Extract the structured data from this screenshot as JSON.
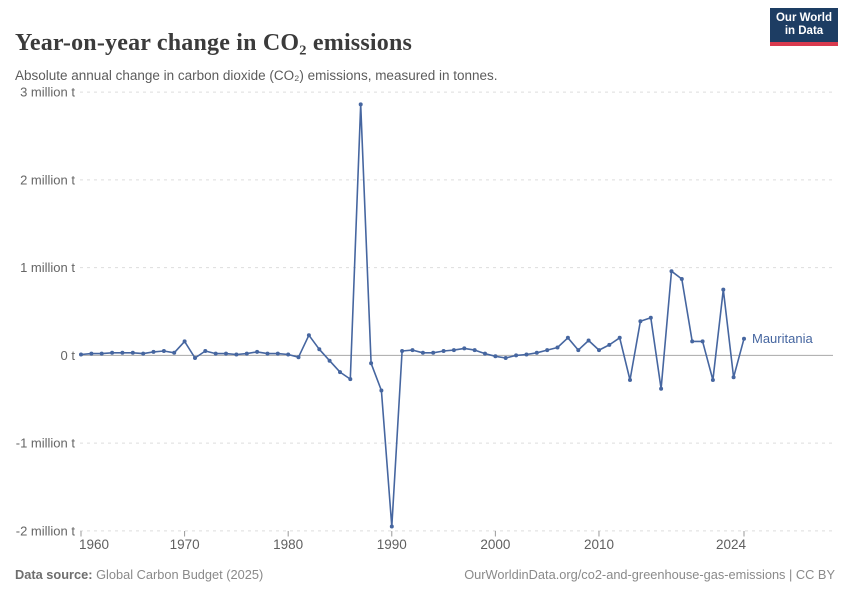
{
  "header": {
    "title": "Year-on-year change in CO₂ emissions",
    "subtitle": "Absolute annual change in carbon dioxide (CO₂) emissions, measured in tonnes.",
    "logo": {
      "line1": "Our World",
      "line2": "in Data",
      "bg_color": "#1d3d63",
      "accent_color": "#d93a4e"
    }
  },
  "chart_data": {
    "type": "line",
    "title": "Year-on-year change in CO₂ emissions",
    "unit": "tonnes",
    "xlabel": "",
    "ylabel": "",
    "grid": true,
    "legend_position": "end-of-line-label",
    "xlim": [
      1960,
      2024
    ],
    "ylim": [
      -2000000,
      3000000
    ],
    "x_ticks": [
      1960,
      1970,
      1980,
      1990,
      2000,
      2010,
      2024
    ],
    "y_ticks": [
      {
        "value": 3000000,
        "label": "3 million t"
      },
      {
        "value": 2000000,
        "label": "2 million t"
      },
      {
        "value": 1000000,
        "label": "1 million t"
      },
      {
        "value": 0,
        "label": "0 t"
      },
      {
        "value": -1000000,
        "label": "-1 million t"
      },
      {
        "value": -2000000,
        "label": "-2 million t"
      }
    ],
    "series": [
      {
        "name": "Mauritania",
        "color": "#4666a0",
        "x": [
          1960,
          1961,
          1962,
          1963,
          1964,
          1965,
          1966,
          1967,
          1968,
          1969,
          1970,
          1971,
          1972,
          1973,
          1974,
          1975,
          1976,
          1977,
          1978,
          1979,
          1980,
          1981,
          1982,
          1983,
          1984,
          1985,
          1986,
          1987,
          1988,
          1989,
          1990,
          1991,
          1992,
          1993,
          1994,
          1995,
          1996,
          1997,
          1998,
          1999,
          2000,
          2001,
          2002,
          2003,
          2004,
          2005,
          2006,
          2007,
          2008,
          2009,
          2010,
          2011,
          2012,
          2013,
          2014,
          2015,
          2016,
          2017,
          2018,
          2019,
          2020,
          2021,
          2022,
          2023,
          2024
        ],
        "values": [
          10000,
          20000,
          20000,
          30000,
          30000,
          30000,
          20000,
          40000,
          50000,
          30000,
          160000,
          -30000,
          50000,
          20000,
          20000,
          10000,
          20000,
          40000,
          20000,
          20000,
          10000,
          -20000,
          230000,
          70000,
          -60000,
          -190000,
          -270000,
          2860000,
          -90000,
          -400000,
          -1950000,
          50000,
          60000,
          30000,
          30000,
          50000,
          60000,
          80000,
          60000,
          20000,
          -10000,
          -30000,
          0,
          10000,
          30000,
          60000,
          90000,
          200000,
          60000,
          170000,
          60000,
          120000,
          200000,
          -280000,
          390000,
          430000,
          -380000,
          960000,
          870000,
          160000,
          160000,
          -280000,
          750000,
          -250000,
          190000
        ]
      }
    ],
    "colors": {
      "gridline": "#dddddd",
      "zero_line": "#a8a8a8",
      "tick_mark": "#999999",
      "axis_label": "#666666"
    }
  },
  "footer": {
    "source_label": "Data source:",
    "source_value": " Global Carbon Budget (2025)",
    "attribution": "OurWorldinData.org/co2-and-greenhouse-gas-emissions | CC BY"
  }
}
